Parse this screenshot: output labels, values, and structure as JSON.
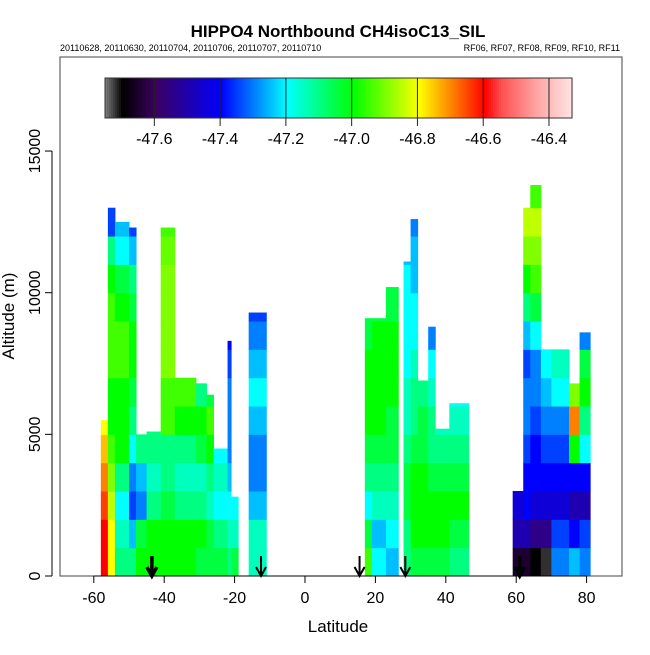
{
  "chart_data": {
    "type": "heatmap",
    "title": "HIPPO4 Northbound CH4isoC13_SIL",
    "subtitle_left": "20110628, 20110630, 20110704, 20110706, 20110707, 20110710",
    "subtitle_right": "RF06, RF07, RF08, RF09, RF10, RF11",
    "xlabel": "Latitude",
    "ylabel": "Altitude (m)",
    "xlim": [
      -72,
      88
    ],
    "ylim": [
      0,
      18300
    ],
    "xticks": [
      -60,
      -40,
      -20,
      0,
      20,
      40,
      60,
      80
    ],
    "xtick_labels": [
      "-60",
      "-40",
      "-20",
      "0",
      "20",
      "40",
      "60",
      "80"
    ],
    "yticks": [
      0,
      5000,
      10000,
      15000
    ],
    "ytick_labels": [
      "0",
      "5000",
      "10000",
      "15000"
    ],
    "colorbar": {
      "range": [
        -47.75,
        -46.33
      ],
      "ticks": [
        -47.6,
        -47.4,
        -47.2,
        -47.0,
        -46.8,
        -46.6,
        -46.4
      ],
      "tick_labels": [
        "-47.6",
        "-47.4",
        "-47.2",
        "-47.0",
        "-46.8",
        "-46.6",
        "-46.4"
      ],
      "colorscale": [
        [
          -47.75,
          "#777777"
        ],
        [
          -47.7,
          "#000000"
        ],
        [
          -47.6,
          "#3c0060"
        ],
        [
          -47.4,
          "#0000ff"
        ],
        [
          -47.2,
          "#00ffff"
        ],
        [
          -47.0,
          "#00ff00"
        ],
        [
          -46.8,
          "#ffff00"
        ],
        [
          -46.6,
          "#ff0000"
        ],
        [
          -46.55,
          "#ff5050"
        ],
        [
          -46.45,
          "#ffa0a0"
        ],
        [
          -46.33,
          "#ffe8e8"
        ]
      ]
    },
    "bin_altitude_m": 1000,
    "columns": [
      {
        "lat": [
          -58,
          -56
        ],
        "top": 5500,
        "values": [
          -46.6,
          -46.6,
          -46.65,
          -46.7,
          -46.75,
          -46.8
        ]
      },
      {
        "lat": [
          -56,
          -54
        ],
        "top": 13000,
        "values": [
          -46.8,
          -46.8,
          -46.85,
          -46.9,
          -46.95,
          -47.0,
          -47.0,
          -46.95,
          -46.95,
          -46.95,
          -47.0,
          -47.1,
          -47.35
        ]
      },
      {
        "lat": [
          -54,
          -50
        ],
        "top": 12500,
        "values": [
          -47.1,
          -47.15,
          -47.2,
          -47.1,
          -47.0,
          -47.0,
          -47.0,
          -46.95,
          -46.95,
          -47.0,
          -47.05,
          -47.2,
          -47.25
        ]
      },
      {
        "lat": [
          -50,
          -48
        ],
        "top": 12300,
        "values": [
          -47.1,
          -47.25,
          -47.35,
          -47.3,
          -47.2,
          -47.1,
          -47.05,
          -47.0,
          -47.0,
          -47.05,
          -47.1,
          -47.25,
          -47.35
        ]
      },
      {
        "lat": [
          -48,
          -45
        ],
        "top": 5000,
        "values": [
          -47.0,
          -47.05,
          -47.3,
          -47.25,
          -47.1
        ]
      },
      {
        "lat": [
          -45,
          -41
        ],
        "top": 5100,
        "values": [
          -47.0,
          -47.0,
          -47.1,
          -47.15,
          -47.1,
          -47.1
        ]
      },
      {
        "lat": [
          -41,
          -37
        ],
        "top": 12300,
        "values": [
          -47.0,
          -47.0,
          -47.05,
          -47.1,
          -47.1,
          -46.95,
          -46.95,
          -46.9,
          -46.9,
          -46.9,
          -46.9,
          -46.92,
          -46.95
        ]
      },
      {
        "lat": [
          -37,
          -31
        ],
        "top": 7000,
        "values": [
          -47.0,
          -47.0,
          -47.1,
          -47.15,
          -47.1,
          -47.0,
          -46.95
        ]
      },
      {
        "lat": [
          -31,
          -28
        ],
        "top": 6800,
        "values": [
          -47.05,
          -47.0,
          -47.1,
          -47.15,
          -47.05,
          -47.0,
          -47.1
        ]
      },
      {
        "lat": [
          -28,
          -26
        ],
        "top": 6400,
        "values": [
          -47.05,
          -47.05,
          -47.15,
          -47.1,
          -47.0,
          -46.95,
          -47.05
        ]
      },
      {
        "lat": [
          -26,
          -22
        ],
        "top": 4500,
        "values": [
          -47.05,
          -47.1,
          -47.2,
          -47.15,
          -47.2
        ]
      },
      {
        "lat": [
          -22,
          -21
        ],
        "top": 8300,
        "values": [
          -47.1,
          -47.15,
          -47.2,
          -47.25,
          -47.3,
          -47.3,
          -47.3,
          -47.35,
          -47.4
        ]
      },
      {
        "lat": [
          -21,
          -19
        ],
        "top": 2800,
        "values": [
          -47.05,
          -47.15,
          -47.2
        ]
      },
      {
        "lat": [
          -16,
          -11
        ],
        "top": 9300,
        "values": [
          -47.15,
          -47.15,
          -47.25,
          -47.3,
          -47.3,
          -47.25,
          -47.2,
          -47.25,
          -47.3,
          -47.35
        ]
      },
      {
        "lat": [
          17,
          19
        ],
        "top": 9100,
        "values": [
          -46.95,
          -47.05,
          -47.2,
          -47.1,
          -47.05,
          -47.0,
          -47.0,
          -47.0,
          -47.05,
          -47.05
        ]
      },
      {
        "lat": [
          19,
          23
        ],
        "top": 9100,
        "values": [
          -47.2,
          -47.25,
          -47.15,
          -47.1,
          -47.05,
          -47.0,
          -47.0,
          -47.0,
          -47.0,
          -47.05
        ]
      },
      {
        "lat": [
          23,
          26.5
        ],
        "top": 10200,
        "values": [
          -47.25,
          -47.2,
          -47.15,
          -47.1,
          -47.05,
          -47.05,
          -47.0,
          -47.0,
          -47.0,
          -47.05,
          -47.05
        ]
      },
      {
        "lat": [
          28,
          30
        ],
        "top": 11100,
        "values": [
          -47.1,
          -47.1,
          -47.05,
          -47.05,
          -47.1,
          -47.15,
          -47.15,
          -47.2,
          -47.2,
          -47.2,
          -47.2,
          -47.25
        ]
      },
      {
        "lat": [
          30,
          32
        ],
        "top": 12600,
        "values": [
          -47.05,
          -47.0,
          -47.0,
          -47.0,
          -47.05,
          -47.1,
          -47.1,
          -47.15,
          -47.2,
          -47.2,
          -47.25,
          -47.25,
          -47.3
        ]
      },
      {
        "lat": [
          32,
          35
        ],
        "top": 6900,
        "values": [
          -47.05,
          -47.0,
          -47.0,
          -47.0,
          -47.05,
          -47.05,
          -47.1
        ]
      },
      {
        "lat": [
          35,
          37
        ],
        "top": 8800,
        "values": [
          -47.05,
          -47.0,
          -47.0,
          -47.05,
          -47.1,
          -47.1,
          -47.15,
          -47.2,
          -47.3
        ]
      },
      {
        "lat": [
          37,
          41
        ],
        "top": 5200,
        "values": [
          -47.05,
          -47.0,
          -47.0,
          -47.05,
          -47.1,
          -47.15
        ]
      },
      {
        "lat": [
          41,
          46.5
        ],
        "top": 6100,
        "values": [
          -47.1,
          -47.05,
          -47.0,
          -47.05,
          -47.1,
          -47.15,
          -47.2
        ]
      },
      {
        "lat": [
          59,
          62
        ],
        "top": 3000,
        "values": [
          -47.65,
          -47.5,
          -47.45
        ]
      },
      {
        "lat": [
          62,
          64
        ],
        "top": 13000,
        "values": [
          -47.65,
          -47.5,
          -47.4,
          -47.4,
          -47.35,
          -47.3,
          -47.3,
          -47.35,
          -47.25,
          -47.1,
          -47.0,
          -46.9,
          -46.85
        ]
      },
      {
        "lat": [
          64,
          67
        ],
        "top": 13800,
        "values": [
          -47.7,
          -47.55,
          -47.45,
          -47.4,
          -47.4,
          -47.35,
          -47.3,
          -47.3,
          -47.2,
          -47.05,
          -46.95,
          -46.9,
          -46.85,
          -46.95
        ]
      },
      {
        "lat": [
          67,
          70
        ],
        "top": 8000,
        "values": [
          -47.72,
          -47.55,
          -47.45,
          -47.4,
          -47.35,
          -47.3,
          -47.25,
          -47.2
        ]
      },
      {
        "lat": [
          70,
          75
        ],
        "top": 8000,
        "values": [
          -47.3,
          -47.35,
          -47.45,
          -47.4,
          -47.35,
          -47.3,
          -47.2,
          -47.15
        ]
      },
      {
        "lat": [
          75,
          78
        ],
        "top": 6800,
        "values": [
          -47.25,
          -47.4,
          -47.5,
          -47.4,
          -47.0,
          -46.7,
          -46.9
        ]
      },
      {
        "lat": [
          78,
          81
        ],
        "top": 8600,
        "values": [
          -47.3,
          -47.35,
          -47.5,
          -47.4,
          -47.2,
          -47.1,
          -47.0,
          -47.05,
          -47.3
        ]
      }
    ],
    "flight_markers_lat": [
      -43.5,
      -12.5,
      15.5,
      28.5,
      61
    ],
    "flight_markers_bold": [
      true,
      false,
      false,
      false,
      true
    ]
  }
}
